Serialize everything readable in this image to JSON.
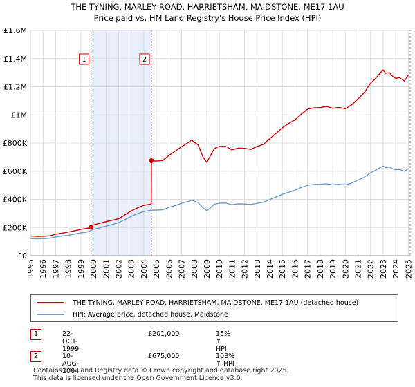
{
  "chart_data": {
    "type": "line",
    "title": "THE TYNING, MARLEY ROAD, HARRIETSHAM, MAIDSTONE, ME17 1AU",
    "subtitle": "Price paid vs. HM Land Registry's House Price Index (HPI)",
    "xlabel": "",
    "ylabel": "",
    "xlim": [
      1995,
      2025.2
    ],
    "ylim": [
      0,
      1600000
    ],
    "grid": true,
    "x_ticks": [
      1995,
      1996,
      1997,
      1998,
      1999,
      2000,
      2001,
      2002,
      2003,
      2004,
      2005,
      2006,
      2007,
      2008,
      2009,
      2010,
      2011,
      2012,
      2013,
      2014,
      2015,
      2016,
      2017,
      2018,
      2019,
      2020,
      2021,
      2022,
      2023,
      2024,
      2025
    ],
    "x_tick_labels": [
      "1995",
      "1996",
      "1997",
      "1998",
      "1999",
      "2000",
      "2001",
      "2002",
      "2003",
      "2004",
      "2005",
      "2006",
      "2007",
      "2008",
      "2009",
      "2010",
      "2011",
      "2012",
      "2013",
      "2014",
      "2015",
      "2016",
      "2017",
      "2018",
      "2019",
      "2020",
      "2021",
      "2022",
      "2023",
      "2024",
      "2025"
    ],
    "y_ticks": [
      0,
      200000,
      400000,
      600000,
      800000,
      1000000,
      1200000,
      1400000,
      1600000
    ],
    "y_tick_labels": [
      "£0",
      "£200K",
      "£400K",
      "£600K",
      "£800K",
      "£1M",
      "£1.2M",
      "£1.4M",
      "£1.6M"
    ],
    "shaded_region": [
      1999.81,
      2004.61
    ],
    "series": [
      {
        "name": "THE TYNING, MARLEY ROAD, HARRIETSHAM, MAIDSTONE, ME17 1AU (detached house)",
        "color": "#cc0000",
        "x": [
          1995,
          1995.5,
          1996,
          1996.5,
          1997,
          1997.5,
          1998,
          1998.5,
          1999,
          1999.5,
          1999.81,
          2000,
          2000.5,
          2001,
          2001.5,
          2002,
          2002.5,
          2003,
          2003.5,
          2004,
          2004.5,
          2004.6,
          2004.61,
          2005,
          2005.5,
          2006,
          2006.5,
          2007,
          2007.5,
          2007.8,
          2008,
          2008.3,
          2008.7,
          2009,
          2009.3,
          2009.6,
          2010,
          2010.5,
          2011,
          2011.5,
          2012,
          2012.5,
          2013,
          2013.5,
          2014,
          2014.5,
          2015,
          2015.5,
          2016,
          2016.5,
          2017,
          2017.5,
          2018,
          2018.5,
          2019,
          2019.5,
          2020,
          2020.5,
          2021,
          2021.5,
          2022,
          2022.3,
          2022.7,
          2023,
          2023.2,
          2023.5,
          2023.8,
          2024,
          2024.3,
          2024.7,
          2025
        ],
        "values": [
          140000,
          137000,
          138000,
          141000,
          152000,
          160000,
          168000,
          176000,
          187000,
          194000,
          201000,
          219000,
          230000,
          242000,
          252000,
          262000,
          290000,
          318000,
          340000,
          358000,
          365000,
          368000,
          675000,
          672000,
          676000,
          712000,
          743000,
          774000,
          801000,
          822000,
          806000,
          788000,
          701000,
          662000,
          712000,
          761000,
          776000,
          777000,
          751000,
          764000,
          762000,
          755000,
          776000,
          790000,
          832000,
          868000,
          908000,
          939000,
          965000,
          1005000,
          1041000,
          1050000,
          1052000,
          1060000,
          1047000,
          1053000,
          1044000,
          1072000,
          1113000,
          1158000,
          1225000,
          1250000,
          1290000,
          1320000,
          1295000,
          1300000,
          1270000,
          1260000,
          1265000,
          1240000,
          1285000
        ]
      },
      {
        "name": "HPI: Average price, detached house, Maidstone",
        "color": "#6a9bd1",
        "x": [
          1995,
          1995.5,
          1996,
          1996.5,
          1997,
          1997.5,
          1998,
          1998.5,
          1999,
          1999.5,
          2000,
          2000.5,
          2001,
          2001.5,
          2002,
          2002.5,
          2003,
          2003.5,
          2004,
          2004.5,
          2005,
          2005.5,
          2006,
          2006.5,
          2007,
          2007.5,
          2007.8,
          2008,
          2008.3,
          2008.7,
          2009,
          2009.3,
          2009.6,
          2010,
          2010.5,
          2011,
          2011.5,
          2012,
          2012.5,
          2013,
          2013.5,
          2014,
          2014.5,
          2015,
          2015.5,
          2016,
          2016.5,
          2017,
          2017.5,
          2018,
          2018.5,
          2019,
          2019.5,
          2020,
          2020.5,
          2021,
          2021.5,
          2022,
          2022.3,
          2022.7,
          2023,
          2023.2,
          2023.5,
          2023.8,
          2024,
          2024.3,
          2024.7,
          2025
        ],
        "values": [
          122000,
          120000,
          121000,
          124000,
          133000,
          140000,
          146000,
          153000,
          162000,
          168000,
          186000,
          198000,
          210000,
          222000,
          235000,
          256000,
          279000,
          299000,
          313000,
          322000,
          324000,
          326000,
          343000,
          357000,
          372000,
          385000,
          394000,
          388000,
          378000,
          340000,
          318000,
          341000,
          366000,
          373000,
          374000,
          362000,
          368000,
          367000,
          364000,
          372000,
          380000,
          399000,
          417000,
          436000,
          450000,
          465000,
          484000,
          500000,
          505000,
          507000,
          511000,
          503000,
          507000,
          503000,
          516000,
          536000,
          557000,
          589000,
          601000,
          623000,
          636000,
          626000,
          630000,
          615000,
          610000,
          612000,
          600000,
          618000
        ]
      }
    ],
    "sales": [
      {
        "marker": "1",
        "x": 1999.81,
        "value": 201000
      },
      {
        "marker": "2",
        "x": 2004.61,
        "value": 675000
      }
    ]
  },
  "legend": {
    "property_label": "THE TYNING, MARLEY ROAD, HARRIETSHAM, MAIDSTONE, ME17 1AU (detached house)",
    "hpi_label": "HPI: Average price, detached house, Maidstone"
  },
  "sales_table": [
    {
      "marker": "1",
      "date": "22-OCT-1999",
      "price": "£201,000",
      "hpi": "15% ↑ HPI"
    },
    {
      "marker": "2",
      "date": "10-AUG-2004",
      "price": "£675,000",
      "hpi": "108% ↑ HPI"
    }
  ],
  "footer": {
    "line1": "Contains HM Land Registry data © Crown copyright and database right 2025.",
    "line2": "This data is licensed under the Open Government Licence v3.0."
  },
  "colors": {
    "property": "#cc0000",
    "hpi": "#6a9bd1",
    "shade": "#e8eefb",
    "grid": "#dddddd"
  }
}
